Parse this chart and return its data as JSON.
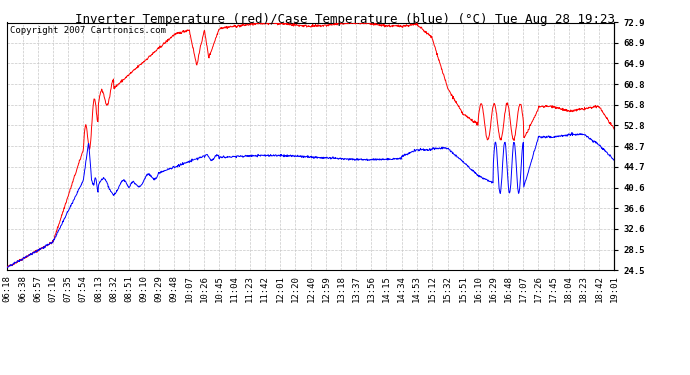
{
  "title": "Inverter Temperature (red)/Case Temperature (blue) (°C) Tue Aug 28 19:23",
  "copyright": "Copyright 2007 Cartronics.com",
  "ylabel_right": [
    "72.9",
    "68.9",
    "64.9",
    "60.8",
    "56.8",
    "52.8",
    "48.7",
    "44.7",
    "40.6",
    "36.6",
    "32.6",
    "28.5",
    "24.5"
  ],
  "y_values": [
    72.9,
    68.9,
    64.9,
    60.8,
    56.8,
    52.8,
    48.7,
    44.7,
    40.6,
    36.6,
    32.6,
    28.5,
    24.5
  ],
  "ylim": [
    24.5,
    72.9
  ],
  "background_color": "#ffffff",
  "grid_color": "#c8c8c8",
  "red_color": "#ff0000",
  "blue_color": "#0000ff",
  "title_fontsize": 9,
  "copyright_fontsize": 6.5,
  "tick_fontsize": 6.5,
  "x_labels": [
    "06:18",
    "06:38",
    "06:57",
    "07:16",
    "07:35",
    "07:54",
    "08:13",
    "08:32",
    "08:51",
    "09:10",
    "09:29",
    "09:48",
    "10:07",
    "10:26",
    "10:45",
    "11:04",
    "11:23",
    "11:42",
    "12:01",
    "12:20",
    "12:40",
    "12:59",
    "13:18",
    "13:37",
    "13:56",
    "14:15",
    "14:34",
    "14:53",
    "15:12",
    "15:32",
    "15:51",
    "16:10",
    "16:29",
    "16:48",
    "17:07",
    "17:26",
    "17:45",
    "18:04",
    "18:23",
    "18:42",
    "19:01"
  ]
}
